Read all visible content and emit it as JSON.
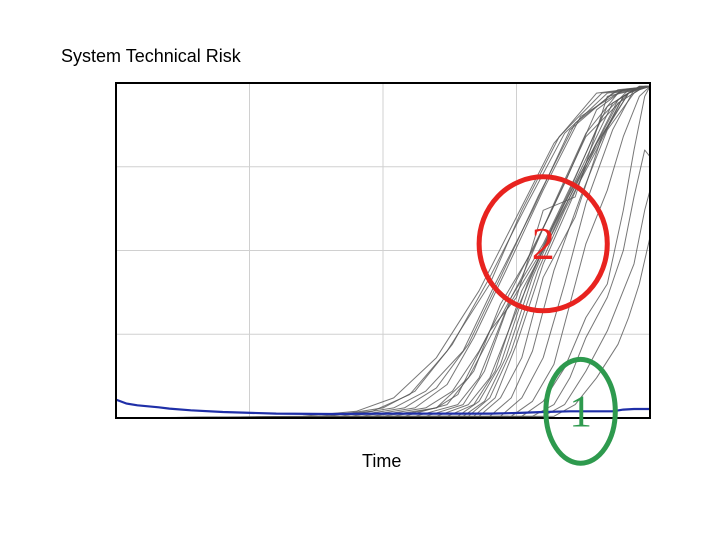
{
  "chart_data": {
    "type": "line",
    "title": "System Technical Risk",
    "xlabel": "Time",
    "ylabel": "",
    "xlim": [
      0,
      100
    ],
    "ylim": [
      0,
      100
    ],
    "grid": true,
    "grid_divisions": {
      "x": 4,
      "y": 4
    },
    "series": [
      {
        "role": "baseline",
        "color": "#1f2fa8",
        "x": [
          0,
          2,
          4,
          6,
          8,
          10,
          14,
          20,
          30,
          40,
          50,
          60,
          70,
          75,
          80,
          85,
          90,
          93,
          95,
          97,
          100
        ],
        "y": [
          5.5,
          4.3,
          3.8,
          3.5,
          3.2,
          2.8,
          2.3,
          1.8,
          1.3,
          1.2,
          1.3,
          1.3,
          1.3,
          1.5,
          1.8,
          2.0,
          2.0,
          2.0,
          2.5,
          2.7,
          2.7
        ]
      },
      {
        "role": "run",
        "color": "#555555",
        "x": [
          0,
          35,
          45,
          52,
          60,
          68,
          75,
          82,
          90,
          100
        ],
        "y": [
          0,
          0.5,
          2,
          6,
          18,
          38,
          60,
          82,
          97,
          99
        ]
      },
      {
        "role": "run",
        "color": "#555555",
        "x": [
          0,
          38,
          48,
          55,
          62,
          70,
          76,
          83,
          91,
          100
        ],
        "y": [
          0,
          0.5,
          2,
          7,
          20,
          40,
          62,
          84,
          97,
          99
        ]
      },
      {
        "role": "run",
        "color": "#555555",
        "x": [
          0,
          40,
          50,
          56,
          63,
          70,
          77,
          84,
          92,
          100
        ],
        "y": [
          0,
          0.5,
          3,
          8,
          22,
          42,
          64,
          85,
          97,
          99
        ]
      },
      {
        "role": "run",
        "color": "#555555",
        "x": [
          0,
          42,
          52,
          58,
          65,
          71,
          78,
          85,
          93,
          100
        ],
        "y": [
          0,
          0.5,
          3,
          8,
          20,
          40,
          62,
          86,
          97,
          99
        ]
      },
      {
        "role": "run",
        "color": "#555555",
        "x": [
          0,
          44,
          54,
          60,
          66,
          72,
          79,
          86,
          94,
          100
        ],
        "y": [
          0,
          0.5,
          3,
          9,
          22,
          42,
          66,
          88,
          98,
          99
        ]
      },
      {
        "role": "run",
        "color": "#555555",
        "x": [
          0,
          46,
          56,
          62,
          67,
          73,
          80,
          87,
          95,
          100
        ],
        "y": [
          0,
          0.5,
          3,
          10,
          24,
          44,
          68,
          90,
          98,
          99
        ]
      },
      {
        "role": "run",
        "color": "#555555",
        "x": [
          0,
          48,
          58,
          63,
          68,
          74,
          81,
          88,
          96,
          100
        ],
        "y": [
          0,
          0.5,
          3,
          8,
          20,
          38,
          60,
          84,
          97,
          99
        ]
      },
      {
        "role": "run",
        "color": "#555555",
        "x": [
          0,
          50,
          60,
          64,
          70,
          75,
          80,
          86,
          92,
          100
        ],
        "y": [
          0,
          0.5,
          3,
          7,
          26,
          36,
          62,
          66,
          96,
          99
        ]
      },
      {
        "role": "run",
        "color": "#555555",
        "x": [
          0,
          52,
          60,
          66,
          72,
          76,
          82,
          88,
          94,
          100
        ],
        "y": [
          0,
          0.5,
          3,
          12,
          30,
          42,
          64,
          85,
          97,
          99
        ]
      },
      {
        "role": "run",
        "color": "#555555",
        "x": [
          0,
          54,
          62,
          67,
          72,
          78,
          84,
          90,
          95,
          100
        ],
        "y": [
          0,
          0.5,
          4,
          14,
          34,
          50,
          70,
          92,
          98,
          99
        ]
      },
      {
        "role": "run",
        "color": "#555555",
        "x": [
          0,
          56,
          64,
          68,
          73,
          79,
          85,
          91,
          96,
          100
        ],
        "y": [
          0,
          0.5,
          4,
          12,
          32,
          48,
          68,
          90,
          98,
          99
        ]
      },
      {
        "role": "run",
        "color": "#555555",
        "x": [
          0,
          58,
          65,
          69,
          74,
          80,
          86,
          92,
          97,
          100
        ],
        "y": [
          0,
          0.5,
          4,
          14,
          36,
          52,
          72,
          93,
          98,
          99
        ]
      },
      {
        "role": "run",
        "color": "#555555",
        "x": [
          0,
          60,
          66,
          70,
          75,
          81,
          87,
          93,
          97,
          100
        ],
        "y": [
          0,
          0.5,
          4,
          12,
          32,
          54,
          74,
          94,
          98,
          99
        ]
      },
      {
        "role": "run",
        "color": "#555555",
        "x": [
          0,
          62,
          67,
          71,
          76,
          82,
          88,
          94,
          98,
          100
        ],
        "y": [
          0,
          0.5,
          4,
          14,
          38,
          56,
          76,
          94,
          98,
          99
        ]
      },
      {
        "role": "run",
        "color": "#555555",
        "x": [
          0,
          64,
          68,
          72,
          77,
          82,
          88,
          94,
          98,
          100
        ],
        "y": [
          0,
          0.5,
          5,
          16,
          40,
          58,
          76,
          95,
          99,
          99
        ]
      },
      {
        "role": "run",
        "color": "#555555",
        "x": [
          0,
          65,
          69,
          73,
          78,
          83,
          89,
          95,
          98,
          100
        ],
        "y": [
          0,
          0.5,
          5,
          18,
          42,
          60,
          78,
          96,
          99,
          99
        ]
      },
      {
        "role": "run",
        "color": "#555555",
        "x": [
          0,
          66,
          70,
          74,
          79,
          84,
          90,
          95,
          98,
          100
        ],
        "y": [
          0,
          0.5,
          6,
          20,
          44,
          62,
          80,
          96,
          99,
          99
        ]
      },
      {
        "role": "run",
        "color": "#555555",
        "x": [
          0,
          67,
          71,
          75,
          80,
          85,
          90,
          96,
          99,
          100
        ],
        "y": [
          0,
          0.5,
          6,
          22,
          46,
          64,
          82,
          97,
          99,
          99
        ]
      },
      {
        "role": "run",
        "color": "#555555",
        "x": [
          0,
          68,
          72,
          76,
          80,
          86,
          91,
          96,
          99,
          100
        ],
        "y": [
          0,
          0.5,
          6,
          18,
          42,
          60,
          84,
          97,
          99,
          99
        ]
      },
      {
        "role": "run",
        "color": "#555555",
        "x": [
          0,
          70,
          74,
          78,
          82,
          87,
          92,
          97,
          99,
          100
        ],
        "y": [
          0,
          0.5,
          6,
          20,
          44,
          66,
          86,
          97,
          99,
          99
        ]
      },
      {
        "role": "run",
        "color": "#555555",
        "x": [
          0,
          72,
          76,
          80,
          84,
          88,
          93,
          97,
          99,
          100
        ],
        "y": [
          0,
          0.5,
          6,
          18,
          40,
          64,
          86,
          98,
          99,
          99
        ]
      },
      {
        "role": "run",
        "color": "#555555",
        "x": [
          0,
          74,
          78,
          82,
          85,
          88,
          92,
          95,
          98,
          100
        ],
        "y": [
          0,
          0.5,
          5,
          16,
          34,
          52,
          68,
          84,
          96,
          99
        ]
      },
      {
        "role": "run",
        "color": "#555555",
        "x": [
          0,
          76,
          80,
          84,
          88,
          92,
          95,
          97,
          99,
          100
        ],
        "y": [
          0,
          0.5,
          5,
          15,
          30,
          40,
          62,
          80,
          96,
          99
        ]
      },
      {
        "role": "run",
        "color": "#555555",
        "x": [
          0,
          78,
          82,
          85,
          88,
          92,
          95,
          97,
          99,
          100
        ],
        "y": [
          0,
          0.5,
          4,
          12,
          24,
          36,
          50,
          66,
          80,
          78
        ]
      },
      {
        "role": "run",
        "color": "#555555",
        "x": [
          0,
          80,
          84,
          88,
          92,
          95,
          97,
          99,
          100
        ],
        "y": [
          0,
          0.5,
          4,
          14,
          26,
          38,
          46,
          62,
          68
        ]
      },
      {
        "role": "run",
        "color": "#555555",
        "x": [
          0,
          82,
          86,
          90,
          94,
          96,
          98,
          100
        ],
        "y": [
          0,
          0.5,
          4,
          12,
          22,
          30,
          40,
          54
        ]
      }
    ],
    "annotations": [
      {
        "label": "2",
        "color": "#e8231f",
        "cx": 80,
        "cy": 52,
        "rx": 12,
        "ry": 20
      },
      {
        "label": "1",
        "color": "#2e9a4e",
        "cx": 87,
        "cy": 2,
        "rx": 6.5,
        "ry": 15.5
      }
    ]
  }
}
